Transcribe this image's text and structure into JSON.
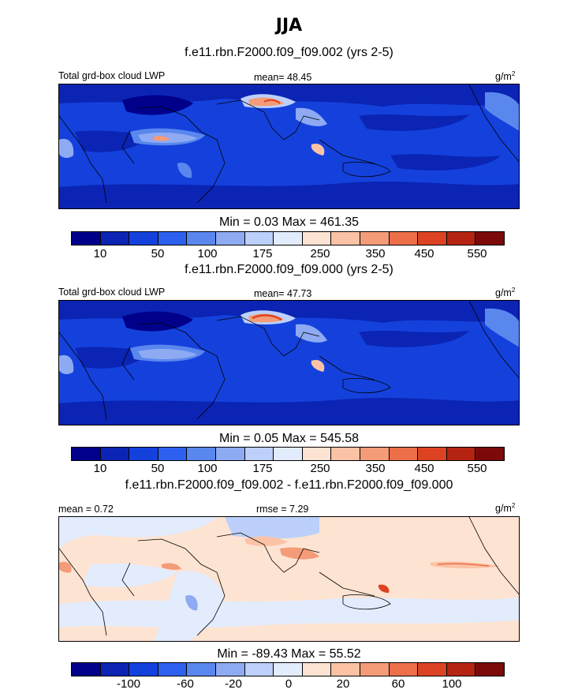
{
  "figure": {
    "title": "JJA",
    "colors": {
      "abs_scale": [
        "#00008b",
        "#0b24b4",
        "#1441dc",
        "#2e60f0",
        "#5a87ee",
        "#8eaaf2",
        "#bcd0fb",
        "#e3ecfd",
        "#fde3d2",
        "#fbc2a5",
        "#f49b78",
        "#ec6f4a",
        "#dc4322",
        "#b52412",
        "#7c0a0a"
      ],
      "diff_scale": [
        "#00008b",
        "#0b24b4",
        "#1441dc",
        "#2e60f0",
        "#5a87ee",
        "#8eaaf2",
        "#bcd0fb",
        "#e3ecfd",
        "#fde3d2",
        "#fbc2a5",
        "#f49b78",
        "#ec6f4a",
        "#dc4322",
        "#b52412",
        "#7c0a0a"
      ]
    },
    "panels": [
      {
        "id": "panel1",
        "case_title": "f.e11.rbn.F2000.f09_f09.002 (yrs 2-5)",
        "left_label": "Total grd-box cloud LWP",
        "center_label": "mean=  48.45",
        "units_base": "g/m",
        "units_sup": "2",
        "minmax": "Min =   0.03 Max = 461.35",
        "tick_labels": [
          "10",
          "50",
          "100",
          "175",
          "250",
          "350",
          "450",
          "550"
        ]
      },
      {
        "id": "panel2",
        "case_title": "f.e11.rbn.F2000.f09_f09.000 (yrs 2-5)",
        "left_label": "Total grd-box cloud LWP",
        "center_label": "mean=  47.73",
        "units_base": "g/m",
        "units_sup": "2",
        "minmax": "Min =   0.05 Max = 545.58",
        "tick_labels": [
          "10",
          "50",
          "100",
          "175",
          "250",
          "350",
          "450",
          "550"
        ]
      },
      {
        "id": "panel3",
        "case_title": "f.e11.rbn.F2000.f09_f09.002 - f.e11.rbn.F2000.f09_f09.000",
        "left_label": "mean =   0.72",
        "center_label": "rmse =   7.29",
        "units_base": "g/m",
        "units_sup": "2",
        "minmax": "Min = -89.43 Max =  55.52",
        "tick_labels": [
          "-100",
          "-60",
          "-20",
          "0",
          "20",
          "60",
          "100"
        ]
      }
    ]
  }
}
